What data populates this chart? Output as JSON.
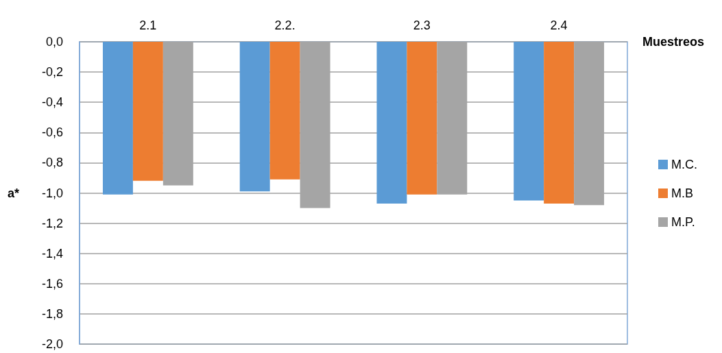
{
  "chart_data": {
    "type": "bar",
    "xlabel": "Muestreos",
    "ylabel": "a*",
    "categories": [
      "2.1",
      "2.2.",
      "2.3",
      "2.4"
    ],
    "series": [
      {
        "name": "M.C.",
        "color": "#5b9bd5",
        "values": [
          -1.01,
          -0.99,
          -1.07,
          -1.05
        ]
      },
      {
        "name": "M.B",
        "color": "#ed7d31",
        "values": [
          -0.92,
          -0.91,
          -1.01,
          -1.07
        ]
      },
      {
        "name": "M.P.",
        "color": "#a5a5a5",
        "values": [
          -0.95,
          -1.1,
          -1.01,
          -1.08
        ]
      }
    ],
    "ylim": [
      -2,
      0
    ],
    "yticks": [
      {
        "value": 0,
        "label": "0,0"
      },
      {
        "value": -0.2,
        "label": "-0,2"
      },
      {
        "value": -0.4,
        "label": "-0,4"
      },
      {
        "value": -0.6,
        "label": "-0,6"
      },
      {
        "value": -0.8,
        "label": "-0,8"
      },
      {
        "value": -1,
        "label": "-1,0"
      },
      {
        "value": -1.2,
        "label": "-1,2"
      },
      {
        "value": -1.4,
        "label": "-1,4"
      },
      {
        "value": -1.6,
        "label": "-1,6"
      },
      {
        "value": -1.8,
        "label": "-1,8"
      },
      {
        "value": -2,
        "label": "-2,0"
      }
    ],
    "grid": "y",
    "legend": "right"
  }
}
